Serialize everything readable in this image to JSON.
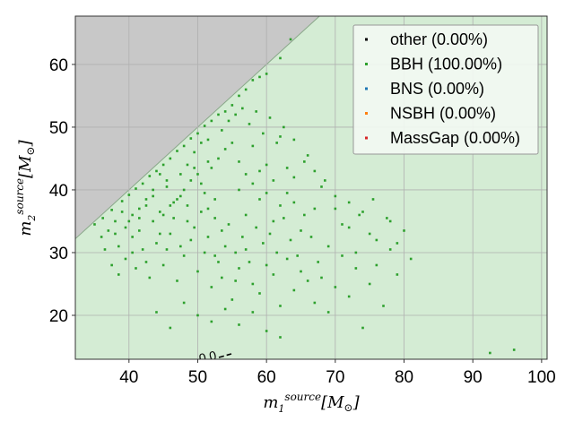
{
  "chart_data": {
    "type": "scatter",
    "title": "",
    "xlabel": "m_1^{source} [M_⊙]",
    "ylabel": "m_2^{source} [M_⊙]",
    "xlabel_parts": {
      "base": "m",
      "sub": "1",
      "sup": "source",
      "unit": "[M",
      "unit_sub": "⊙",
      "close": "]"
    },
    "ylabel_parts": {
      "base": "m",
      "sub": "2",
      "sup": "source",
      "unit": "[M",
      "unit_sub": "⊙",
      "close": "]"
    },
    "xlim": [
      32.2,
      100.8
    ],
    "ylim": [
      13.0,
      67.7
    ],
    "xticks": [
      40,
      50,
      60,
      70,
      80,
      90,
      100
    ],
    "yticks": [
      20,
      30,
      40,
      50,
      60
    ],
    "grid": true,
    "legend_position": "top-right",
    "excluded_region": {
      "description": "m2 > m1",
      "color": "#c8c8c8"
    },
    "region_fill_color": "#d4ecd4",
    "contour_label": "0.0",
    "series": [
      {
        "name": "other (0.00%)",
        "color": "#000000",
        "points": []
      },
      {
        "name": "BBH (100.00%)",
        "color": "#2ca02c",
        "points": [
          [
            35.0,
            34.5
          ],
          [
            36.2,
            35.5
          ],
          [
            37.5,
            36.8
          ],
          [
            38.0,
            33.0
          ],
          [
            39.0,
            38.2
          ],
          [
            40.0,
            39.2
          ],
          [
            40.5,
            36.0
          ],
          [
            41.0,
            40.2
          ],
          [
            41.5,
            35.5
          ],
          [
            42.0,
            41.0
          ],
          [
            42.5,
            37.5
          ],
          [
            43.0,
            42.2
          ],
          [
            43.5,
            39.0
          ],
          [
            44.0,
            43.0
          ],
          [
            44.5,
            36.5
          ],
          [
            45.0,
            44.0
          ],
          [
            45.5,
            40.5
          ],
          [
            46.0,
            45.0
          ],
          [
            46.5,
            38.0
          ],
          [
            47.0,
            46.2
          ],
          [
            47.5,
            42.5
          ],
          [
            48.0,
            47.0
          ],
          [
            48.5,
            35.0
          ],
          [
            49.0,
            48.2
          ],
          [
            49.5,
            43.5
          ],
          [
            50.0,
            49.0
          ],
          [
            50.5,
            41.0
          ],
          [
            51.0,
            50.2
          ],
          [
            51.5,
            44.5
          ],
          [
            52.0,
            51.0
          ],
          [
            52.5,
            38.5
          ],
          [
            53.0,
            52.0
          ],
          [
            54.0,
            52.5
          ],
          [
            55.0,
            53.5
          ],
          [
            56.0,
            55.0
          ],
          [
            57.0,
            56.0
          ],
          [
            58.0,
            57.5
          ],
          [
            59.0,
            58.0
          ],
          [
            60.0,
            58.5
          ],
          [
            62.0,
            61.0
          ],
          [
            63.5,
            64.0
          ],
          [
            38.5,
            31.0
          ],
          [
            39.5,
            29.0
          ],
          [
            40.5,
            32.5
          ],
          [
            41.0,
            27.5
          ],
          [
            42.0,
            30.5
          ],
          [
            43.0,
            26.0
          ],
          [
            44.0,
            31.5
          ],
          [
            45.0,
            28.0
          ],
          [
            46.0,
            33.0
          ],
          [
            47.0,
            25.5
          ],
          [
            48.0,
            29.5
          ],
          [
            49.0,
            32.0
          ],
          [
            50.0,
            27.0
          ],
          [
            51.0,
            30.0
          ],
          [
            52.0,
            24.5
          ],
          [
            53.0,
            28.5
          ],
          [
            54.0,
            31.0
          ],
          [
            55.0,
            22.5
          ],
          [
            56.0,
            27.5
          ],
          [
            57.0,
            30.5
          ],
          [
            58.0,
            25.0
          ],
          [
            59.0,
            23.5
          ],
          [
            60.0,
            28.0
          ],
          [
            61.0,
            26.5
          ],
          [
            62.0,
            21.5
          ],
          [
            63.0,
            29.0
          ],
          [
            64.0,
            24.0
          ],
          [
            65.0,
            27.0
          ],
          [
            66.0,
            25.5
          ],
          [
            67.0,
            22.0
          ],
          [
            68.0,
            26.0
          ],
          [
            69.0,
            20.5
          ],
          [
            70.0,
            24.5
          ],
          [
            71.0,
            29.5
          ],
          [
            72.0,
            23.0
          ],
          [
            73.0,
            27.5
          ],
          [
            74.0,
            18.0
          ],
          [
            75.0,
            25.0
          ],
          [
            76.0,
            28.0
          ],
          [
            77.0,
            21.5
          ],
          [
            78.0,
            30.5
          ],
          [
            79.0,
            26.5
          ],
          [
            80.0,
            33.5
          ],
          [
            81.0,
            29.0
          ],
          [
            58.0,
            47.0
          ],
          [
            60.0,
            44.0
          ],
          [
            62.0,
            48.5
          ],
          [
            64.0,
            42.0
          ],
          [
            66.0,
            45.5
          ],
          [
            68.0,
            40.5
          ],
          [
            70.0,
            37.0
          ],
          [
            72.0,
            34.0
          ],
          [
            74.0,
            36.5
          ],
          [
            76.0,
            32.0
          ],
          [
            78.0,
            35.0
          ],
          [
            56.0,
            40.0
          ],
          [
            57.0,
            36.0
          ],
          [
            59.0,
            38.5
          ],
          [
            61.0,
            35.0
          ],
          [
            63.0,
            39.5
          ],
          [
            65.0,
            33.5
          ],
          [
            67.0,
            37.0
          ],
          [
            69.0,
            31.0
          ],
          [
            71.0,
            34.5
          ],
          [
            73.0,
            30.0
          ],
          [
            75.0,
            33.0
          ],
          [
            44.0,
            20.5
          ],
          [
            46.0,
            18.0
          ],
          [
            48.0,
            22.0
          ],
          [
            50.0,
            20.0
          ],
          [
            52.0,
            19.0
          ],
          [
            54.0,
            21.0
          ],
          [
            56.0,
            18.5
          ],
          [
            58.0,
            20.5
          ],
          [
            60.0,
            17.5
          ],
          [
            62.0,
            16.5
          ],
          [
            55.5,
            25.5
          ],
          [
            53.5,
            33.5
          ],
          [
            52.5,
            35.5
          ],
          [
            51.5,
            37.0
          ],
          [
            47.5,
            39.0
          ],
          [
            45.5,
            41.5
          ],
          [
            44.5,
            42.5
          ],
          [
            43.5,
            40.0
          ],
          [
            42.5,
            38.5
          ],
          [
            41.5,
            37.0
          ],
          [
            40.0,
            35.0
          ],
          [
            39.0,
            36.5
          ],
          [
            38.0,
            35.0
          ],
          [
            37.0,
            33.5
          ],
          [
            36.0,
            32.5
          ],
          [
            48.5,
            44.0
          ],
          [
            49.5,
            46.0
          ],
          [
            50.5,
            47.5
          ],
          [
            51.5,
            48.0
          ],
          [
            53.5,
            49.5
          ],
          [
            54.5,
            51.0
          ],
          [
            55.5,
            52.0
          ],
          [
            56.5,
            53.0
          ],
          [
            57.5,
            50.5
          ],
          [
            58.5,
            52.5
          ],
          [
            59.5,
            49.0
          ],
          [
            60.5,
            51.5
          ],
          [
            61.5,
            47.5
          ],
          [
            62.5,
            50.0
          ],
          [
            64.0,
            48.0
          ],
          [
            65.5,
            44.5
          ],
          [
            67.0,
            43.0
          ],
          [
            68.5,
            41.5
          ],
          [
            70.0,
            39.0
          ],
          [
            72.0,
            38.0
          ],
          [
            73.5,
            36.0
          ],
          [
            75.5,
            38.5
          ],
          [
            77.5,
            35.5
          ],
          [
            79.0,
            31.5
          ],
          [
            92.5,
            14.0
          ],
          [
            96.0,
            14.5
          ],
          [
            36.5,
            30.5
          ],
          [
            37.5,
            28.0
          ],
          [
            38.5,
            26.5
          ],
          [
            39.5,
            34.0
          ],
          [
            40.5,
            30.0
          ],
          [
            41.5,
            33.5
          ],
          [
            42.5,
            28.5
          ],
          [
            43.5,
            35.0
          ],
          [
            44.5,
            33.0
          ],
          [
            45.5,
            30.5
          ],
          [
            46.5,
            35.5
          ],
          [
            47.5,
            31.0
          ],
          [
            48.5,
            37.5
          ],
          [
            49.5,
            34.0
          ],
          [
            50.5,
            36.5
          ],
          [
            51.5,
            32.5
          ],
          [
            52.5,
            29.5
          ],
          [
            53.5,
            26.0
          ],
          [
            54.5,
            34.5
          ],
          [
            55.5,
            30.0
          ],
          [
            56.5,
            32.5
          ],
          [
            57.5,
            28.5
          ],
          [
            58.5,
            34.0
          ],
          [
            59.5,
            31.5
          ],
          [
            60.5,
            33.0
          ],
          [
            61.5,
            30.0
          ],
          [
            62.5,
            35.5
          ],
          [
            63.5,
            32.0
          ],
          [
            64.5,
            29.5
          ],
          [
            65.5,
            36.0
          ],
          [
            66.5,
            32.5
          ],
          [
            67.5,
            28.5
          ],
          [
            45.0,
            36.0
          ],
          [
            46.0,
            37.5
          ],
          [
            47.0,
            38.5
          ],
          [
            48.0,
            40.0
          ],
          [
            49.0,
            41.5
          ],
          [
            50.0,
            42.5
          ],
          [
            51.0,
            39.5
          ],
          [
            52.0,
            43.5
          ],
          [
            53.0,
            45.0
          ],
          [
            54.0,
            46.5
          ],
          [
            55.0,
            47.5
          ],
          [
            56.0,
            44.5
          ],
          [
            57.0,
            42.5
          ],
          [
            58.0,
            41.0
          ],
          [
            59.0,
            43.0
          ],
          [
            60.0,
            39.5
          ],
          [
            61.0,
            41.5
          ],
          [
            62.0,
            37.5
          ],
          [
            63.0,
            43.5
          ],
          [
            64.0,
            38.0
          ]
        ]
      },
      {
        "name": "BNS (0.00%)",
        "color": "#1f77b4",
        "points": []
      },
      {
        "name": "NSBH (0.00%)",
        "color": "#ff7f0e",
        "points": []
      },
      {
        "name": "MassGap (0.00%)",
        "color": "#d62728",
        "points": []
      }
    ]
  }
}
